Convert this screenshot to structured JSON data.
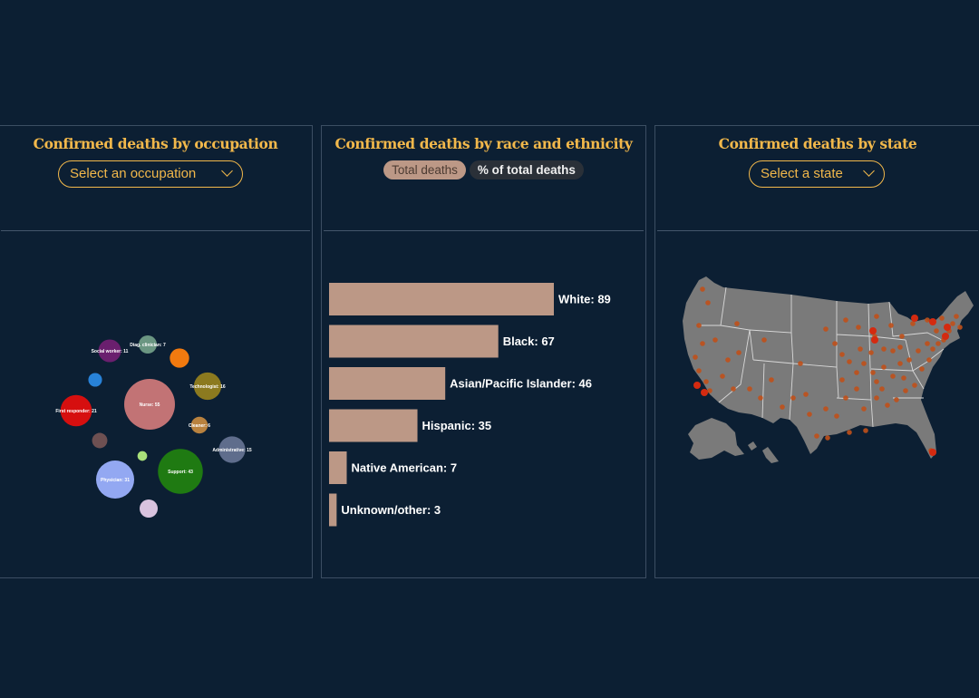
{
  "panels": {
    "occupation": {
      "title": "Confirmed deaths by occupation",
      "select_label": "Select an occupation"
    },
    "race": {
      "title": "Confirmed deaths by race and ethnicity",
      "toggle_total": "Total deaths",
      "toggle_pct": "% of total deaths"
    },
    "state": {
      "title": "Confirmed deaths by state",
      "select_label": "Select a state"
    }
  },
  "colors": {
    "background": "#0c1f33",
    "accent": "#f2b84b",
    "bar": "#bc9886",
    "map_land": "#7a7a7a",
    "map_dot": "#c0501a"
  },
  "chart_data": [
    {
      "type": "scatter",
      "subtype": "bubble",
      "bubbles": [
        {
          "label": "Nurse: 55",
          "value": 55,
          "color": "#c27375"
        },
        {
          "label": "Support: 43",
          "value": 43,
          "color": "#1f7a12"
        },
        {
          "label": "Physician: 31",
          "value": 31,
          "color": "#93a8f2"
        },
        {
          "label": "First responder: 21",
          "value": 21,
          "color": "#d60f0f"
        },
        {
          "label": "Technologist: 16",
          "value": 16,
          "color": "#8c7a1f"
        },
        {
          "label": "Administrative: 15",
          "value": 15,
          "color": "#5f6d8c"
        },
        {
          "label": "Social worker: 11",
          "value": 11,
          "color": "#6a1f6e"
        },
        {
          "label": "Diag. clinician: 7",
          "value": 7,
          "color": "#6b9682"
        },
        {
          "label": "Cleaner: 6",
          "value": 6,
          "color": "#b9823f"
        },
        {
          "label": "",
          "value": 8,
          "color": "#f27a0f"
        },
        {
          "label": "",
          "value": 7,
          "color": "#d9c3df"
        },
        {
          "label": "",
          "value": 5,
          "color": "#6e5052"
        },
        {
          "label": "",
          "value": 4,
          "color": "#2882d8"
        },
        {
          "label": "",
          "value": 2,
          "color": "#a9e07a"
        }
      ]
    },
    {
      "type": "bar",
      "orientation": "horizontal",
      "categories": [
        "White",
        "Black",
        "Asian/Pacific Islander",
        "Hispanic",
        "Native American",
        "Unknown/other"
      ],
      "values": [
        89,
        67,
        46,
        35,
        7,
        3
      ],
      "labels": [
        "White: 89",
        "Black: 67",
        "Asian/Pacific Islander: 46",
        "Hispanic: 35",
        "Native American: 7",
        "Unknown/other: 3"
      ]
    }
  ]
}
